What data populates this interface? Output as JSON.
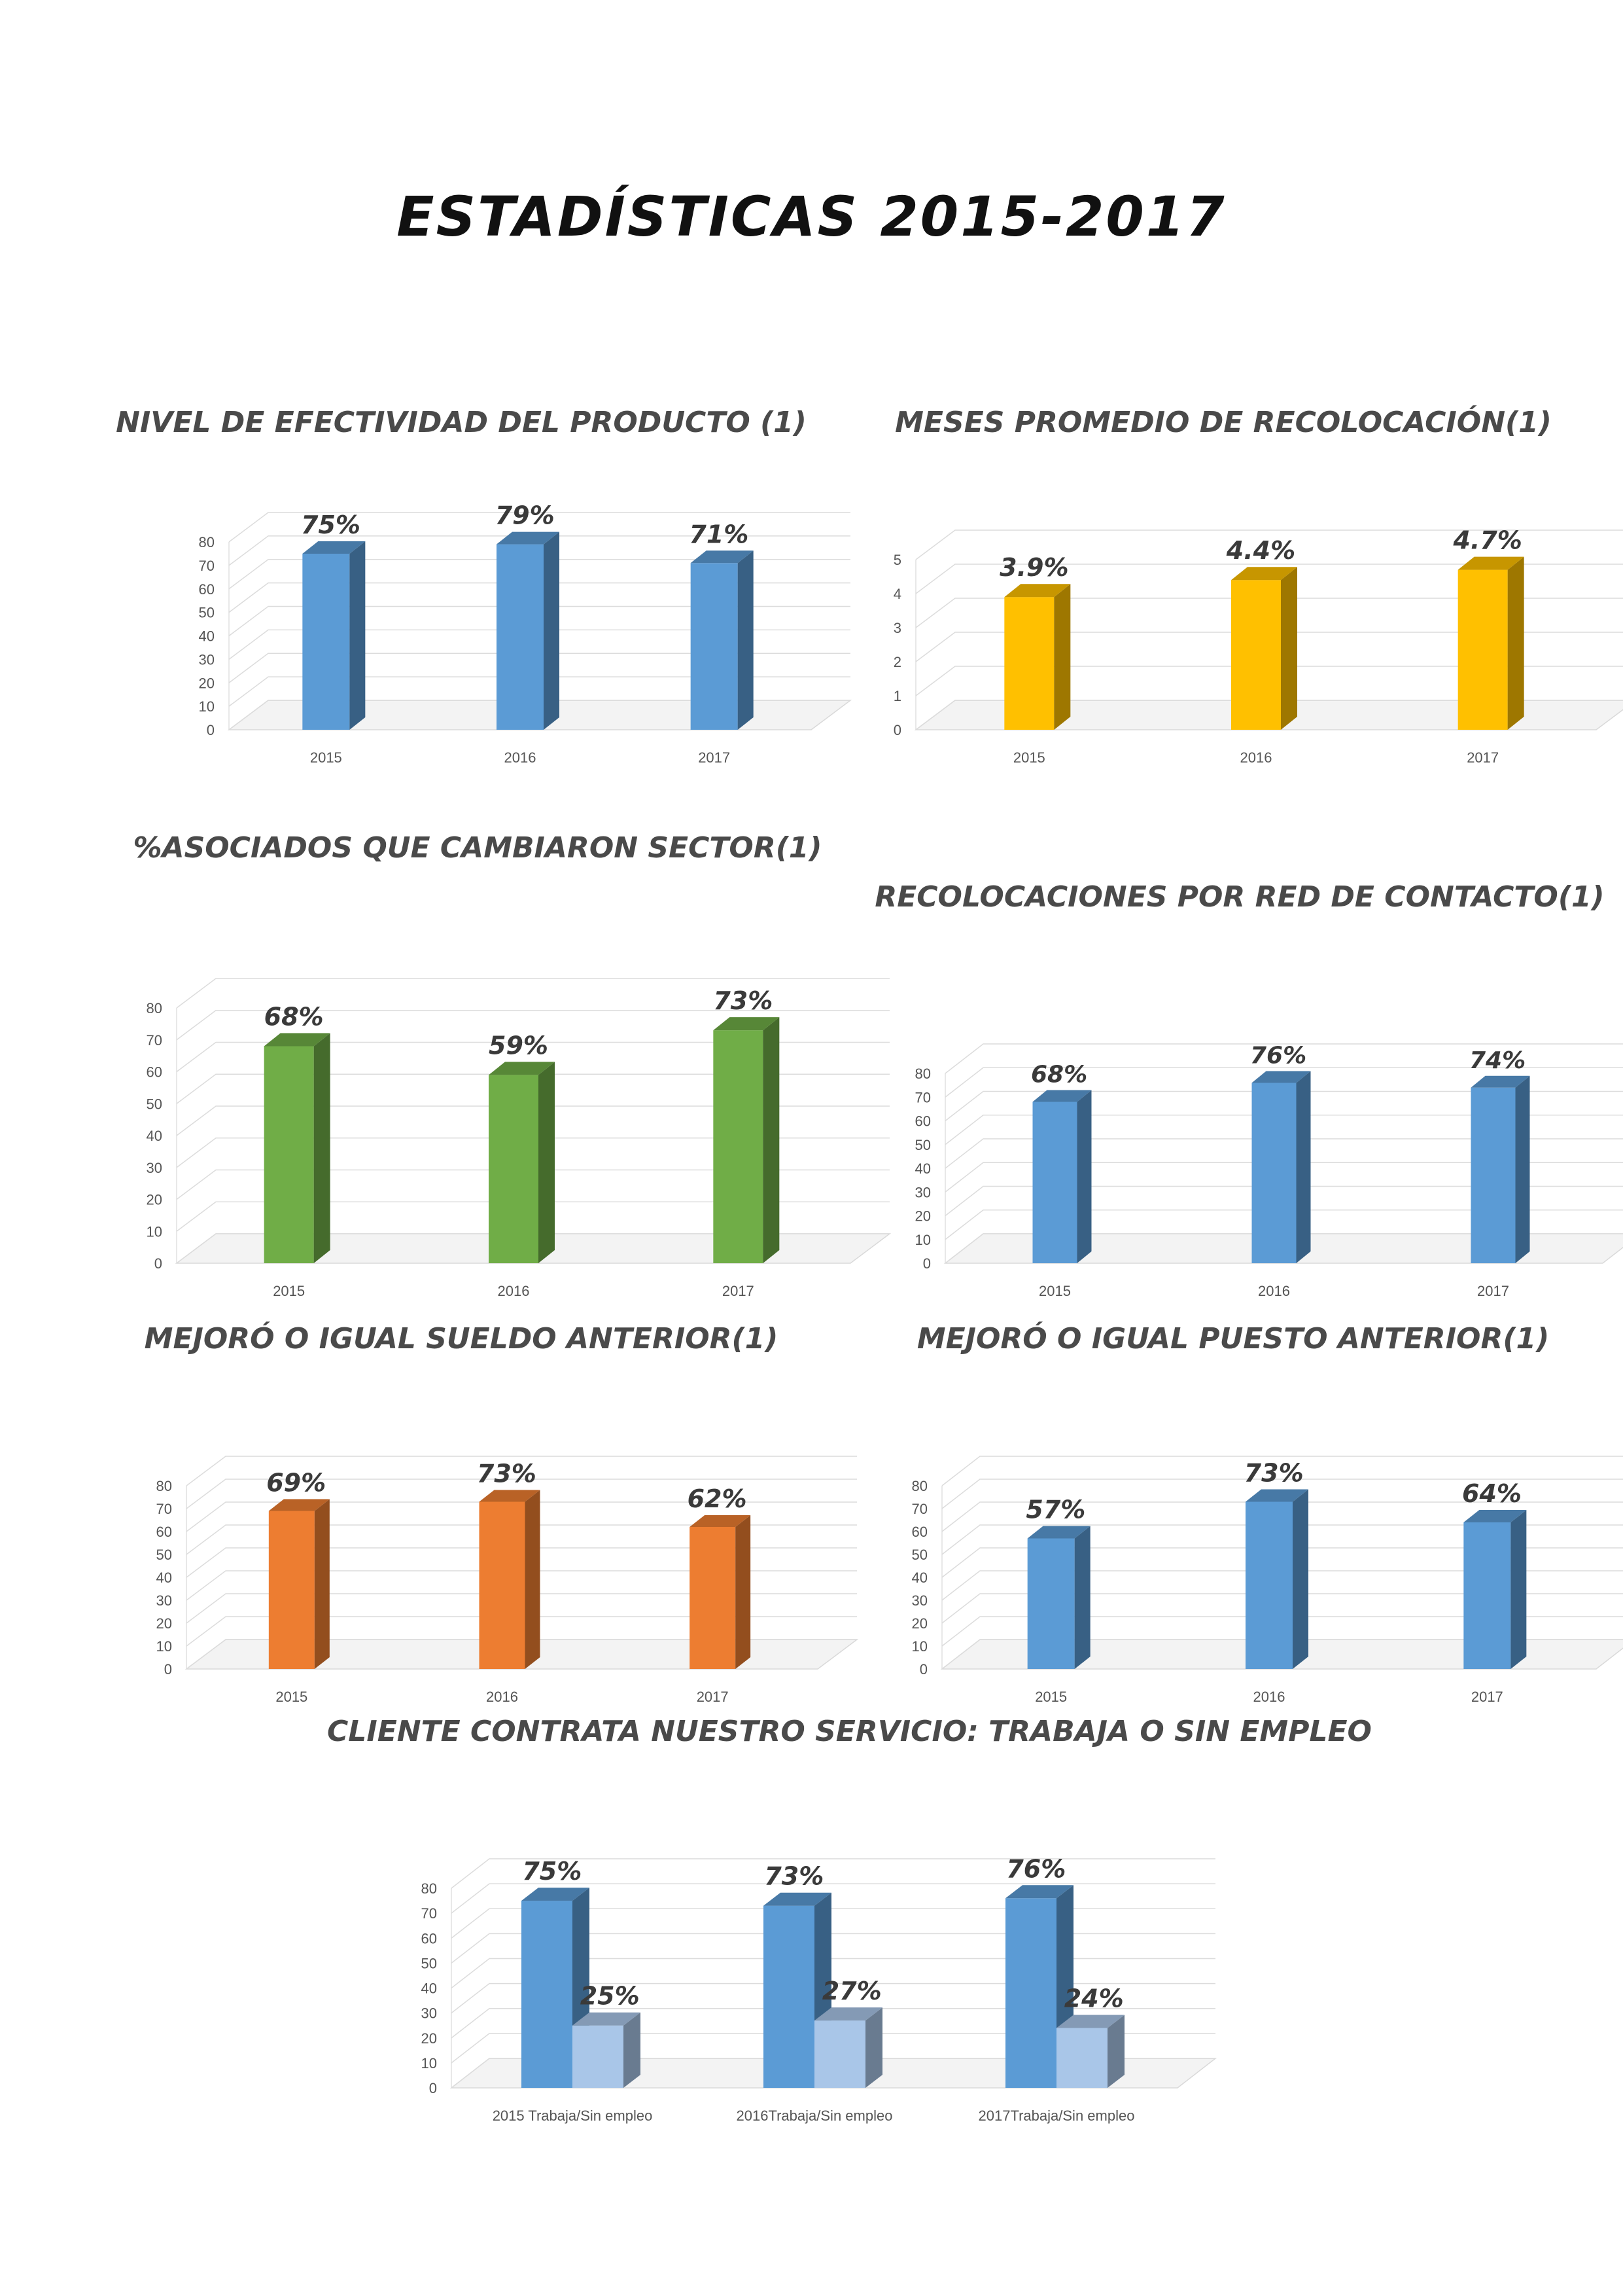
{
  "page": {
    "title": "ESTADÍSTICAS 2015-2017"
  },
  "chart_data": [
    {
      "id": "efectividad",
      "type": "bar",
      "title": "NIVEL DE EFECTIVIDAD DEL PRODUCTO (1)",
      "categories": [
        "2015",
        "2016",
        "2017"
      ],
      "series": [
        {
          "values": [
            75,
            79,
            71
          ],
          "labels": [
            "75%",
            "79%",
            "71%"
          ],
          "color": "#5b9bd5"
        }
      ],
      "yticks": [
        0,
        10,
        20,
        30,
        40,
        50,
        60,
        70,
        80
      ],
      "ylim": [
        0,
        80
      ],
      "grid": true
    },
    {
      "id": "meses",
      "type": "bar",
      "title": "MESES PROMEDIO DE RECOLOCACIÓN(1)",
      "categories": [
        "2015",
        "2016",
        "2017"
      ],
      "series": [
        {
          "values": [
            3.9,
            4.4,
            4.7
          ],
          "labels": [
            "3.9%",
            "4.4%",
            "4.7%"
          ],
          "color": "#ffc000"
        }
      ],
      "yticks": [
        0,
        1,
        2,
        3,
        4,
        5
      ],
      "ylim": [
        0,
        5
      ],
      "grid": true
    },
    {
      "id": "sector",
      "type": "bar",
      "title": "%ASOCIADOS QUE CAMBIARON SECTOR(1)",
      "categories": [
        "2015",
        "2016",
        "2017"
      ],
      "series": [
        {
          "values": [
            68,
            59,
            73
          ],
          "labels": [
            "68%",
            "59%",
            "73%"
          ],
          "color": "#70ad47"
        }
      ],
      "yticks": [
        0,
        10,
        20,
        30,
        40,
        50,
        60,
        70,
        80
      ],
      "ylim": [
        0,
        80
      ],
      "grid": true
    },
    {
      "id": "red",
      "type": "bar",
      "title": "RECOLOCACIONES POR RED DE CONTACTO(1)",
      "categories": [
        "2015",
        "2016",
        "2017"
      ],
      "series": [
        {
          "values": [
            68,
            76,
            74
          ],
          "labels": [
            "68%",
            "76%",
            "74%"
          ],
          "color": "#5b9bd5"
        }
      ],
      "yticks": [
        0,
        10,
        20,
        30,
        40,
        50,
        60,
        70,
        80
      ],
      "ylim": [
        0,
        80
      ],
      "grid": true
    },
    {
      "id": "sueldo",
      "type": "bar",
      "title": "MEJORÓ O IGUAL SUELDO ANTERIOR(1)",
      "categories": [
        "2015",
        "2016",
        "2017"
      ],
      "series": [
        {
          "values": [
            69,
            73,
            62
          ],
          "labels": [
            "69%",
            "73%",
            "62%"
          ],
          "color": "#ed7d31"
        }
      ],
      "yticks": [
        0,
        10,
        20,
        30,
        40,
        50,
        60,
        70,
        80
      ],
      "ylim": [
        0,
        80
      ],
      "grid": true
    },
    {
      "id": "puesto",
      "type": "bar",
      "title": "MEJORÓ O IGUAL PUESTO ANTERIOR(1)",
      "categories": [
        "2015",
        "2016",
        "2017"
      ],
      "series": [
        {
          "values": [
            57,
            73,
            64
          ],
          "labels": [
            "57%",
            "73%",
            "64%"
          ],
          "color": "#5b9bd5"
        }
      ],
      "yticks": [
        0,
        10,
        20,
        30,
        40,
        50,
        60,
        70,
        80
      ],
      "ylim": [
        0,
        80
      ],
      "grid": true
    },
    {
      "id": "cliente",
      "type": "bar",
      "title": "CLIENTE CONTRATA NUESTRO SERVICIO: TRABAJA O SIN EMPLEO",
      "categories": [
        "2015 Trabaja/Sin empleo",
        "2016Trabaja/Sin empleo",
        "2017Trabaja/Sin empleo"
      ],
      "series": [
        {
          "values": [
            75,
            73,
            76
          ],
          "labels": [
            "75%",
            "73%",
            "76%"
          ],
          "color": "#5b9bd5"
        },
        {
          "values": [
            25,
            27,
            24
          ],
          "labels": [
            "25%",
            "27%",
            "24%"
          ],
          "color": "#a9c6e8"
        }
      ],
      "yticks": [
        0,
        10,
        20,
        30,
        40,
        50,
        60,
        70,
        80
      ],
      "ylim": [
        0,
        80
      ],
      "grid": true
    }
  ]
}
